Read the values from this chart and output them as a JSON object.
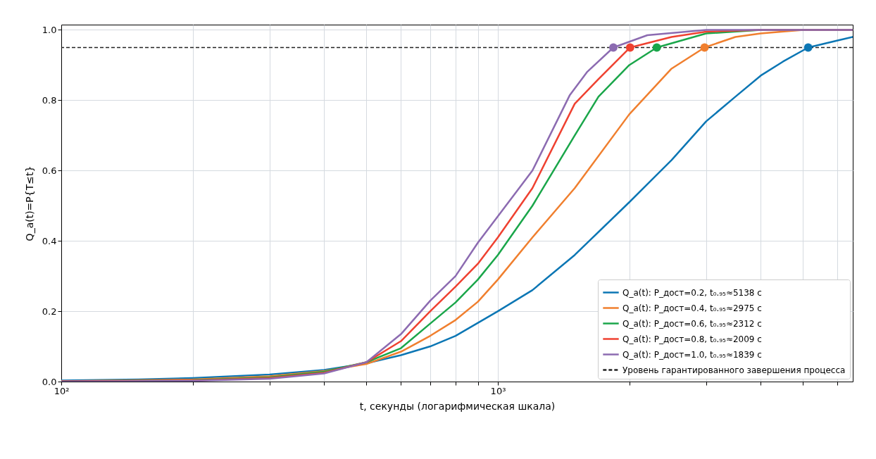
{
  "chart_data": {
    "type": "line",
    "xlabel": "t, секунды (логарифмическая шкала)",
    "ylabel": "Q_a(t)=P{T≤t}",
    "log": "x",
    "grid": true,
    "legend": "bottom right",
    "xlim": [
      100,
      6500
    ],
    "ylim": [
      0,
      1.015
    ],
    "xticks": [
      {
        "value": 100,
        "label": "10²"
      },
      {
        "value": 200,
        "label": null
      },
      {
        "value": 300,
        "label": null
      },
      {
        "value": 400,
        "label": null
      },
      {
        "value": 500,
        "label": null
      },
      {
        "value": 600,
        "label": null
      },
      {
        "value": 700,
        "label": null
      },
      {
        "value": 800,
        "label": null
      },
      {
        "value": 900,
        "label": null
      },
      {
        "value": 1000,
        "label": "10³"
      },
      {
        "value": 2000,
        "label": null
      },
      {
        "value": 3000,
        "label": null
      },
      {
        "value": 4000,
        "label": null
      },
      {
        "value": 5000,
        "label": null
      },
      {
        "value": 6000,
        "label": null
      }
    ],
    "yticks": [
      {
        "value": 0,
        "label": "0.0"
      },
      {
        "value": 0.2,
        "label": "0.2"
      },
      {
        "value": 0.4,
        "label": "0.4"
      },
      {
        "value": 0.6,
        "label": "0.6"
      },
      {
        "value": 0.8,
        "label": "0.8"
      },
      {
        "value": 1,
        "label": "1.0"
      }
    ],
    "series": [
      {
        "name": "Q_a(t): P_дост=0.2,  t₀.₉₅≈5138 с",
        "color": "#0b76b4",
        "x": [
          100,
          150,
          200,
          300,
          400,
          500,
          600,
          700,
          800,
          1000,
          1200,
          1500,
          2000,
          2500,
          3000,
          3500,
          4000,
          4500,
          5138,
          6000,
          6500
        ],
        "values": [
          0.003,
          0.006,
          0.01,
          0.02,
          0.033,
          0.052,
          0.075,
          0.1,
          0.13,
          0.2,
          0.26,
          0.36,
          0.51,
          0.63,
          0.74,
          0.81,
          0.87,
          0.91,
          0.95,
          0.97,
          0.98
        ]
      },
      {
        "name": "Q_a(t): P_дост=0.4,  t₀.₉₅≈2975 с",
        "color": "#f07f2e",
        "x": [
          100,
          200,
          300,
          400,
          500,
          600,
          700,
          800,
          900,
          1000,
          1200,
          1500,
          2000,
          2500,
          2975,
          3500,
          4000,
          5000,
          6500
        ],
        "values": [
          0.001,
          0.006,
          0.015,
          0.03,
          0.05,
          0.085,
          0.13,
          0.175,
          0.227,
          0.29,
          0.41,
          0.55,
          0.76,
          0.89,
          0.95,
          0.98,
          0.99,
          1.0,
          1.0
        ]
      },
      {
        "name": "Q_a(t): P_дост=0.6,  t₀.₉₅≈2312 с",
        "color": "#1aa64a",
        "x": [
          100,
          200,
          300,
          400,
          500,
          600,
          700,
          800,
          900,
          1000,
          1200,
          1500,
          1700,
          2000,
          2312,
          3000,
          4000,
          6500
        ],
        "values": [
          0.001,
          0.004,
          0.012,
          0.028,
          0.055,
          0.095,
          0.165,
          0.225,
          0.29,
          0.36,
          0.5,
          0.7,
          0.81,
          0.9,
          0.95,
          0.99,
          1.0,
          1.0
        ]
      },
      {
        "name": "Q_a(t): P_дост=0.8,  t₀.₉₅≈2009 с",
        "color": "#ef4130",
        "x": [
          100,
          200,
          300,
          400,
          500,
          600,
          700,
          800,
          900,
          1000,
          1200,
          1500,
          1700,
          2009,
          2500,
          3000,
          4000,
          6500
        ],
        "values": [
          0.001,
          0.003,
          0.01,
          0.025,
          0.055,
          0.115,
          0.2,
          0.27,
          0.335,
          0.41,
          0.55,
          0.79,
          0.86,
          0.95,
          0.98,
          0.995,
          1.0,
          1.0
        ]
      },
      {
        "name": "Q_a(t): P_дост=1.0,  t₀.₉₅≈1839 с",
        "color": "#8c6bb1",
        "x": [
          100,
          200,
          300,
          400,
          500,
          600,
          700,
          800,
          900,
          1000,
          1200,
          1462,
          1600,
          1839,
          2200,
          3000,
          6500
        ],
        "values": [
          0,
          0.002,
          0.008,
          0.023,
          0.055,
          0.135,
          0.23,
          0.3,
          0.395,
          0.47,
          0.6,
          0.815,
          0.88,
          0.95,
          0.985,
          1.0,
          1.0
        ]
      },
      {
        "type": "scatter",
        "marker": "circle",
        "x": [
          5138,
          2975,
          2312,
          2009,
          1839
        ],
        "values": [
          0.95,
          0.95,
          0.95,
          0.95,
          0.95
        ],
        "colors": [
          "#0b76b4",
          "#f07f2e",
          "#1aa64a",
          "#ef4130",
          "#8c6bb1"
        ]
      }
    ],
    "ref_lines": [
      {
        "axis": "y",
        "value": 0.95,
        "label": "Уровень гарантированного завершения процесса",
        "color": "#222222",
        "line_style": "dashed"
      }
    ]
  }
}
